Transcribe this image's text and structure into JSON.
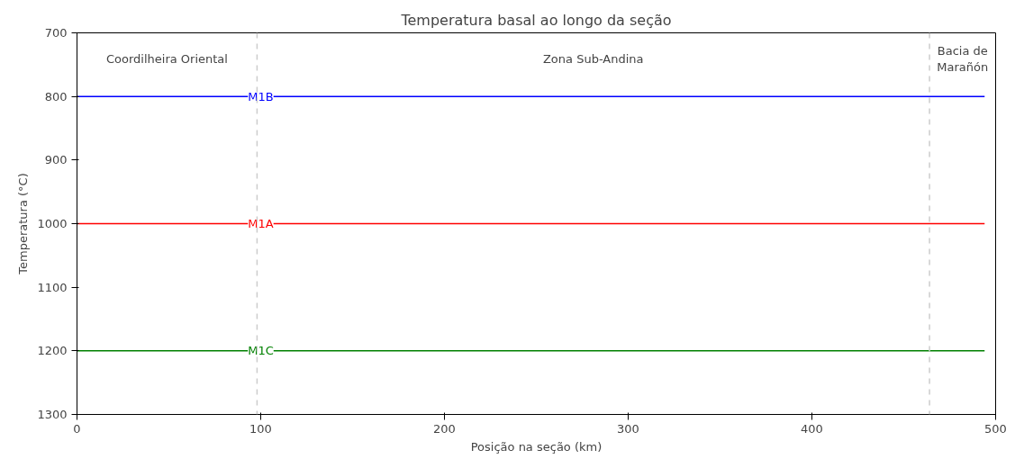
{
  "chart_data": {
    "type": "line",
    "title": "Temperatura basal ao longo da seção",
    "xlabel": "Posição na seção (km)",
    "ylabel": "Temperatura (°C)",
    "x": [
      0,
      494
    ],
    "series": [
      {
        "name": "M1B",
        "color": "#0000ff",
        "values": [
          800,
          800
        ]
      },
      {
        "name": "M1A",
        "color": "#ff0000",
        "values": [
          1000,
          1000
        ]
      },
      {
        "name": "M1C",
        "color": "#008000",
        "values": [
          1200,
          1200
        ]
      }
    ],
    "xlim": [
      0,
      500
    ],
    "ylim": [
      1300,
      700
    ],
    "xticks": [
      0,
      100,
      200,
      300,
      400,
      500
    ],
    "yticks": [
      700,
      800,
      900,
      1000,
      1100,
      1200,
      1300
    ],
    "ref_lines": [
      {
        "axis": "x",
        "value": 98,
        "color": "#cccccc",
        "line_style": "dashed"
      },
      {
        "axis": "x",
        "value": 464,
        "color": "#cccccc",
        "line_style": "dashed"
      }
    ],
    "annotations": [
      "Coordilheira Oriental",
      "Zona Sub-Andina",
      "Bacia de\nMarañón"
    ],
    "grid": false,
    "marker": "none",
    "line_style": "solid"
  }
}
